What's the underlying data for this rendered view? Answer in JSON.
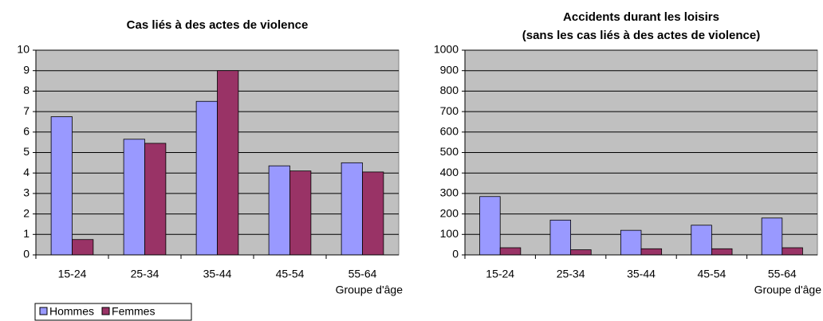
{
  "chart_data": [
    {
      "type": "bar",
      "title": [
        "Cas liés à des actes de violence"
      ],
      "x_label": "Groupe d'âge",
      "categories": [
        "15-24",
        "25-34",
        "35-44",
        "45-54",
        "55-64"
      ],
      "series": [
        {
          "name": "Hommes",
          "color": "#9999ff",
          "values": [
            6.75,
            5.65,
            7.5,
            4.35,
            4.5
          ]
        },
        {
          "name": "Femmes",
          "color": "#993366",
          "values": [
            0.75,
            5.45,
            9,
            4.1,
            4.05
          ]
        }
      ],
      "ylim": [
        0,
        10
      ],
      "yticks": [
        0,
        1,
        2,
        3,
        4,
        5,
        6,
        7,
        8,
        9,
        10
      ],
      "grid": true,
      "legend": "bottom-left"
    },
    {
      "type": "bar",
      "title": [
        "Accidents durant les loisirs",
        "(sans les cas liés à des actes de violence)"
      ],
      "x_label": "Groupe d'âge",
      "categories": [
        "15-24",
        "25-34",
        "35-44",
        "45-54",
        "55-64"
      ],
      "series": [
        {
          "color": "#9999ff",
          "values": [
            285,
            170,
            120,
            145,
            180
          ]
        },
        {
          "color": "#993366",
          "values": [
            35,
            25,
            30,
            30,
            35
          ]
        }
      ],
      "ylim": [
        0,
        1000
      ],
      "yticks": [
        0,
        100,
        200,
        300,
        400,
        500,
        600,
        700,
        800,
        900,
        1000
      ],
      "grid": true
    }
  ]
}
